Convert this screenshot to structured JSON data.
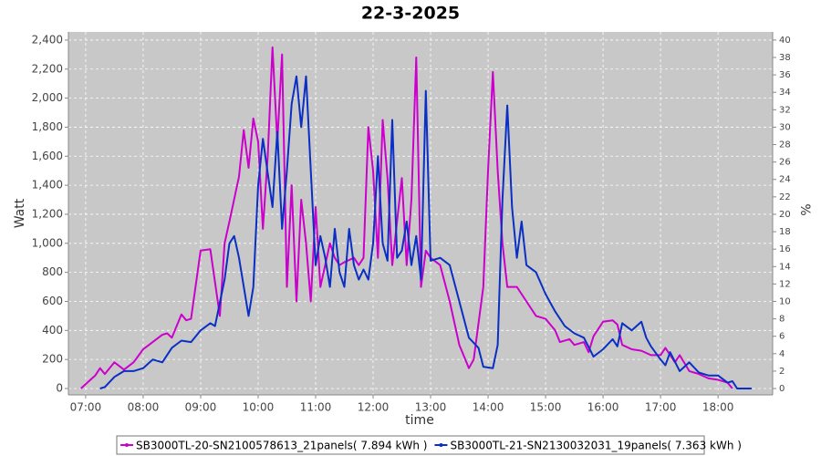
{
  "chart_data": {
    "type": "line",
    "title": "22-3-2025",
    "xlabel": "time",
    "ylabel": "Watt",
    "y2label": "%",
    "xlim": [
      "06:42",
      "18:57"
    ],
    "xticks": [
      "07:00",
      "08:00",
      "09:00",
      "10:00",
      "11:00",
      "12:00",
      "13:00",
      "14:00",
      "15:00",
      "16:00",
      "17:00",
      "18:00"
    ],
    "ylim": [
      -44,
      2456
    ],
    "yticks": [
      0,
      200,
      400,
      600,
      800,
      {
        "value": 1000,
        "label": "1,000"
      },
      {
        "value": 1200,
        "label": "1,200"
      },
      {
        "value": 1400,
        "label": "1,400"
      },
      {
        "value": 1600,
        "label": "1,600"
      },
      {
        "value": 1800,
        "label": "1,800"
      },
      {
        "value": 2000,
        "label": "2,000"
      },
      {
        "value": 2200,
        "label": "2,200"
      },
      {
        "value": 2400,
        "label": "2,400"
      }
    ],
    "y2lim": [
      -0.73,
      40.93
    ],
    "y2ticks": [
      0,
      2,
      4,
      6,
      8,
      10,
      12,
      14,
      16,
      18,
      20,
      22,
      24,
      26,
      28,
      30,
      32,
      34,
      36,
      38,
      40
    ],
    "grid": true,
    "background": "#c8c8c8",
    "legend": "bottom",
    "series": [
      {
        "name": "SB3000TL-20-SN2100578613_21panels( 7.894 kWh )",
        "color": "#cc00cc",
        "x": [
          "06:55",
          "07:05",
          "07:10",
          "07:15",
          "07:20",
          "07:30",
          "07:40",
          "07:50",
          "08:00",
          "08:10",
          "08:20",
          "08:25",
          "08:30",
          "08:40",
          "08:45",
          "08:50",
          "09:00",
          "09:10",
          "09:20",
          "09:25",
          "09:30",
          "09:40",
          "09:45",
          "09:50",
          "09:55",
          "10:00",
          "10:05",
          "10:10",
          "10:15",
          "10:20",
          "10:25",
          "10:30",
          "10:35",
          "10:40",
          "10:45",
          "10:50",
          "10:55",
          "11:00",
          "11:05",
          "11:15",
          "11:20",
          "11:25",
          "11:30",
          "11:40",
          "11:45",
          "11:50",
          "11:55",
          "12:00",
          "12:05",
          "12:10",
          "12:15",
          "12:20",
          "12:30",
          "12:35",
          "12:40",
          "12:45",
          "12:50",
          "12:55",
          "13:00",
          "13:10",
          "13:20",
          "13:30",
          "13:40",
          "13:45",
          "13:55",
          "14:00",
          "14:05",
          "14:10",
          "14:15",
          "14:20",
          "14:30",
          "14:40",
          "14:50",
          "15:00",
          "15:10",
          "15:15",
          "15:25",
          "15:30",
          "15:40",
          "15:45",
          "15:50",
          "16:00",
          "16:10",
          "16:15",
          "16:20",
          "16:30",
          "16:40",
          "16:50",
          "17:00",
          "17:05",
          "17:15",
          "17:20",
          "17:30",
          "17:40",
          "17:50",
          "18:00",
          "18:10",
          "18:15"
        ],
        "values": [
          0,
          60,
          90,
          140,
          100,
          180,
          130,
          180,
          270,
          320,
          370,
          380,
          350,
          510,
          470,
          480,
          950,
          960,
          500,
          1000,
          1150,
          1460,
          1780,
          1520,
          1860,
          1700,
          1100,
          1600,
          2350,
          1700,
          2300,
          700,
          1400,
          600,
          1300,
          1000,
          600,
          1250,
          700,
          1000,
          900,
          850,
          870,
          900,
          850,
          900,
          1800,
          1500,
          900,
          1850,
          1450,
          850,
          1450,
          850,
          1300,
          2280,
          700,
          950,
          900,
          850,
          600,
          300,
          140,
          200,
          700,
          1500,
          2180,
          1500,
          1000,
          700,
          700,
          600,
          500,
          480,
          400,
          320,
          340,
          300,
          320,
          250,
          360,
          460,
          470,
          440,
          300,
          270,
          260,
          230,
          230,
          280,
          180,
          230,
          120,
          100,
          70,
          60,
          40,
          0
        ]
      },
      {
        "name": "SB3000TL-21-SN2130032031_19panels( 7.363 kWh )",
        "color": "#0a2fc4",
        "x": [
          "07:15",
          "07:20",
          "07:30",
          "07:40",
          "07:50",
          "08:00",
          "08:10",
          "08:20",
          "08:30",
          "08:40",
          "08:50",
          "09:00",
          "09:10",
          "09:15",
          "09:25",
          "09:30",
          "09:35",
          "09:40",
          "09:50",
          "09:55",
          "10:00",
          "10:05",
          "10:15",
          "10:20",
          "10:25",
          "10:30",
          "10:35",
          "10:40",
          "10:45",
          "10:50",
          "10:55",
          "11:00",
          "11:05",
          "11:10",
          "11:15",
          "11:20",
          "11:25",
          "11:30",
          "11:35",
          "11:40",
          "11:45",
          "11:50",
          "11:55",
          "12:00",
          "12:05",
          "12:10",
          "12:15",
          "12:20",
          "12:25",
          "12:30",
          "12:35",
          "12:40",
          "12:45",
          "12:50",
          "12:55",
          "13:00",
          "13:10",
          "13:20",
          "13:30",
          "13:40",
          "13:50",
          "13:55",
          "14:05",
          "14:10",
          "14:15",
          "14:20",
          "14:25",
          "14:30",
          "14:35",
          "14:40",
          "14:50",
          "15:00",
          "15:10",
          "15:20",
          "15:30",
          "15:40",
          "15:50",
          "16:00",
          "16:10",
          "16:15",
          "16:20",
          "16:30",
          "16:40",
          "16:45",
          "16:50",
          "17:00",
          "17:05",
          "17:10",
          "17:20",
          "17:30",
          "17:40",
          "17:50",
          "18:00",
          "18:10",
          "18:15",
          "18:20",
          "18:35"
        ],
        "values": [
          0,
          10,
          80,
          120,
          120,
          140,
          200,
          180,
          280,
          330,
          320,
          400,
          450,
          430,
          750,
          1000,
          1050,
          900,
          500,
          700,
          1400,
          1720,
          1250,
          1770,
          1100,
          1500,
          1960,
          2150,
          1800,
          2150,
          1500,
          850,
          1050,
          900,
          700,
          1100,
          800,
          700,
          1100,
          850,
          750,
          820,
          750,
          1000,
          1600,
          1000,
          880,
          1850,
          900,
          950,
          1150,
          850,
          1050,
          750,
          2050,
          880,
          900,
          850,
          600,
          350,
          280,
          150,
          140,
          300,
          1300,
          1950,
          1250,
          900,
          1150,
          850,
          800,
          650,
          530,
          430,
          380,
          350,
          220,
          270,
          340,
          290,
          450,
          400,
          460,
          350,
          290,
          200,
          160,
          250,
          120,
          180,
          110,
          90,
          90,
          40,
          50,
          0,
          0
        ]
      }
    ]
  }
}
